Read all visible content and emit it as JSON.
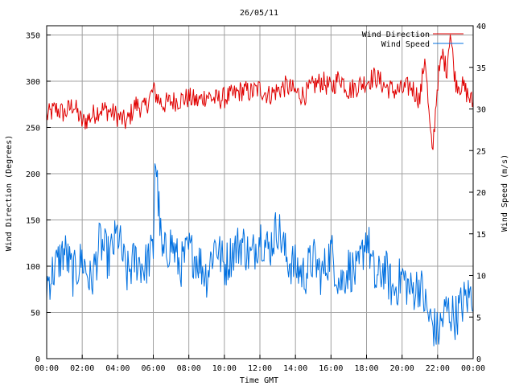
{
  "chart_data": {
    "type": "line",
    "title": "26/05/11",
    "xlabel": "Time GMT",
    "ylabel_left": "Wind Direction (Degrees)",
    "ylabel_right": "Wind Speed (m/s)",
    "grid": true,
    "legend_position": "top-right",
    "x_ticks": [
      "00:00",
      "02:00",
      "04:00",
      "06:00",
      "08:00",
      "10:00",
      "12:00",
      "14:00",
      "16:00",
      "18:00",
      "20:00",
      "22:00",
      "00:00"
    ],
    "x_range_hours": [
      0,
      24
    ],
    "y_left": {
      "range": [
        0,
        360
      ],
      "ticks": [
        0,
        50,
        100,
        150,
        200,
        250,
        300,
        350
      ]
    },
    "y_right": {
      "range": [
        0,
        40
      ],
      "ticks": [
        0,
        5,
        10,
        15,
        20,
        25,
        30,
        35,
        40
      ]
    },
    "series": [
      {
        "name": "Wind Direction",
        "axis": "left",
        "color": "#e00000",
        "hours": [
          0,
          0.5,
          1,
          1.5,
          2,
          2.5,
          3,
          3.5,
          4,
          4.5,
          5,
          5.5,
          6,
          6.5,
          7,
          7.5,
          8,
          8.5,
          9,
          9.5,
          10,
          10.5,
          11,
          11.5,
          12,
          12.5,
          13,
          13.5,
          14,
          14.5,
          15,
          15.5,
          16,
          16.5,
          17,
          17.5,
          18,
          18.5,
          19,
          19.5,
          20,
          20.5,
          21,
          21.3,
          21.5,
          21.7,
          22,
          22.3,
          22.5,
          22.7,
          23,
          23.5,
          24
        ],
        "values": [
          262,
          270,
          265,
          275,
          255,
          262,
          270,
          268,
          262,
          255,
          275,
          270,
          290,
          275,
          278,
          280,
          282,
          278,
          285,
          280,
          282,
          285,
          290,
          288,
          292,
          285,
          290,
          295,
          288,
          285,
          295,
          300,
          292,
          305,
          290,
          295,
          300,
          305,
          295,
          290,
          290,
          295,
          280,
          330,
          265,
          220,
          300,
          330,
          310,
          355,
          300,
          292,
          275
        ]
      },
      {
        "name": "Wind Speed",
        "axis": "right",
        "color": "#0070e0",
        "hours": [
          0,
          0.5,
          1,
          1.5,
          2,
          2.5,
          3,
          3.5,
          4,
          4.5,
          5,
          5.5,
          6,
          6.1,
          6.5,
          7,
          7.5,
          8,
          8.5,
          9,
          9.5,
          10,
          10.5,
          11,
          11.5,
          12,
          12.5,
          13,
          13.5,
          14,
          14.5,
          15,
          15.5,
          16,
          16.5,
          17,
          17.5,
          18,
          18.5,
          19,
          19.5,
          20,
          20.5,
          21,
          21.5,
          22,
          22.5,
          23,
          23.5,
          24
        ],
        "values": [
          9,
          11,
          13,
          10,
          12,
          9,
          14,
          12,
          15,
          10,
          12,
          11,
          13,
          25,
          12,
          14,
          11,
          13,
          12,
          10,
          14,
          11,
          13,
          14,
          12,
          15,
          13,
          16,
          12,
          11,
          10,
          12,
          10,
          13,
          9,
          11,
          10,
          15,
          9,
          11,
          8,
          10,
          8,
          9,
          5,
          3,
          6,
          5,
          7,
          8
        ]
      }
    ]
  }
}
